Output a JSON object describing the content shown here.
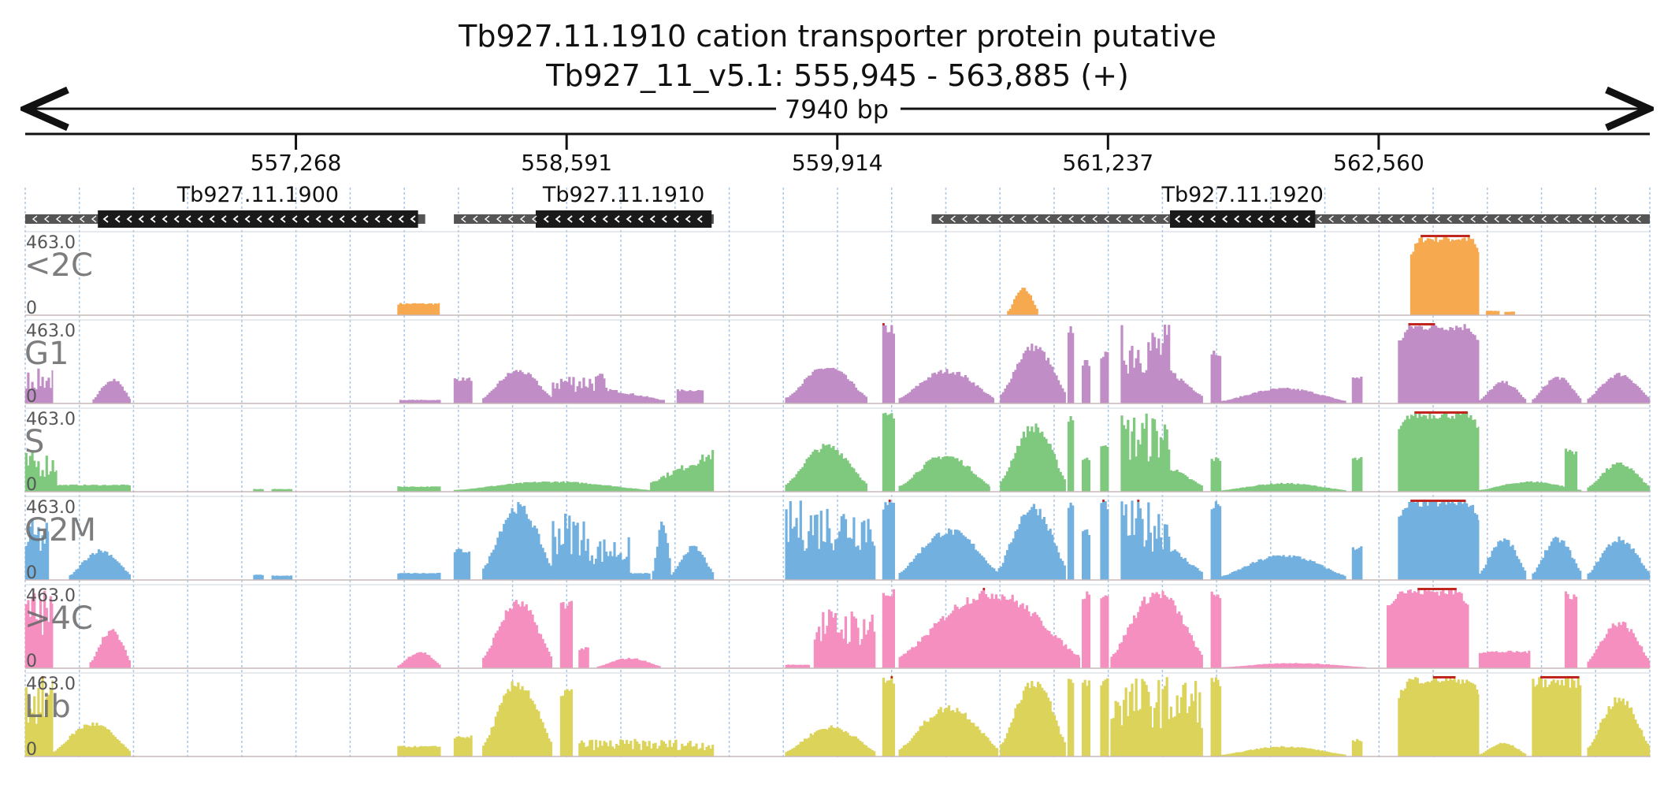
{
  "title": {
    "line1": "Tb927.11.1910  cation transporter protein  putative",
    "line2": "Tb927_11_v5.1: 555,945 - 563,885 (+)"
  },
  "span_label": "7940 bp",
  "colors": {
    "<2C": "#f7a94f",
    "G1": "#c08dc6",
    "S": "#7fc97f",
    "G2M": "#72b0e0",
    ">4C": "#f48fbf",
    "Lib": "#dcd35a",
    "clip": "#c0261f",
    "gene_thick": "#1a1a1a",
    "gene_thin": "#555555"
  },
  "chart_data": {
    "type": "area",
    "region": {
      "chrom": "Tb927_11_v5.1",
      "start": 555945,
      "end": 563885,
      "strand": "+"
    },
    "ruler_ticks": [
      "557,268",
      "558,591",
      "559,914",
      "561,237",
      "562,560"
    ],
    "ruler_tick_positions": [
      557268,
      558591,
      559914,
      561237,
      562560
    ],
    "genes": [
      {
        "name": "Tb927.11.1900",
        "start": 555945,
        "end": 557900,
        "cds_start": 556300,
        "cds_end": 557865
      },
      {
        "name": "Tb927.11.1910",
        "start": 558040,
        "end": 559310,
        "cds_start": 558440,
        "cds_end": 559300
      },
      {
        "name": "Tb927.11.1920",
        "start": 560375,
        "end": 563885,
        "cds_start": 561540,
        "cds_end": 562250
      }
    ],
    "ylim": [
      0,
      463.0
    ],
    "ymax_label": "463.0",
    "ymin_label": "0",
    "tracks": [
      {
        "name": "<2C",
        "color": "#f7a94f",
        "segments": [
          {
            "start": 557765,
            "end": 557970,
            "peak": 70,
            "shape": "flat"
          },
          {
            "start": 560745,
            "end": 560895,
            "peak": 160,
            "shape": "bump"
          },
          {
            "start": 562715,
            "end": 563050,
            "peak": 463,
            "shape": "plateau"
          },
          {
            "start": 563085,
            "end": 563150,
            "peak": 25,
            "shape": "flat"
          },
          {
            "start": 563175,
            "end": 563225,
            "peak": 20,
            "shape": "flat"
          }
        ]
      },
      {
        "name": "G1",
        "color": "#c08dc6",
        "segments": [
          {
            "start": 555945,
            "end": 556080,
            "peak": 200,
            "shape": "jagged"
          },
          {
            "start": 556275,
            "end": 556460,
            "peak": 150,
            "shape": "bump"
          },
          {
            "start": 557775,
            "end": 557975,
            "peak": 20,
            "shape": "flat"
          },
          {
            "start": 558040,
            "end": 558130,
            "peak": 150,
            "shape": "flat"
          },
          {
            "start": 558180,
            "end": 558520,
            "peak": 200,
            "shape": "bump"
          },
          {
            "start": 558520,
            "end": 558780,
            "peak": 180,
            "shape": "jagged"
          },
          {
            "start": 558780,
            "end": 559070,
            "peak": 90,
            "shape": "decay"
          },
          {
            "start": 559130,
            "end": 559260,
            "peak": 80,
            "shape": "flat"
          },
          {
            "start": 559660,
            "end": 560060,
            "peak": 220,
            "shape": "bump"
          },
          {
            "start": 560135,
            "end": 560195,
            "peak": 463,
            "shape": "flat"
          },
          {
            "start": 560215,
            "end": 560680,
            "peak": 200,
            "shape": "bump"
          },
          {
            "start": 560710,
            "end": 561030,
            "peak": 350,
            "shape": "bump"
          },
          {
            "start": 561040,
            "end": 561070,
            "peak": 463,
            "shape": "flat"
          },
          {
            "start": 561110,
            "end": 561150,
            "peak": 250,
            "shape": "flat"
          },
          {
            "start": 561200,
            "end": 561240,
            "peak": 300,
            "shape": "flat"
          },
          {
            "start": 561300,
            "end": 561540,
            "peak": 463,
            "shape": "jagged"
          },
          {
            "start": 561540,
            "end": 561700,
            "peak": 200,
            "shape": "decay"
          },
          {
            "start": 561740,
            "end": 561790,
            "peak": 320,
            "shape": "flat"
          },
          {
            "start": 561790,
            "end": 562400,
            "peak": 90,
            "shape": "bump"
          },
          {
            "start": 562430,
            "end": 562480,
            "peak": 160,
            "shape": "flat"
          },
          {
            "start": 562655,
            "end": 563050,
            "peak": 463,
            "shape": "plateau"
          },
          {
            "start": 563050,
            "end": 563280,
            "peak": 130,
            "shape": "bump"
          },
          {
            "start": 563310,
            "end": 563550,
            "peak": 160,
            "shape": "bump"
          },
          {
            "start": 563580,
            "end": 563885,
            "peak": 180,
            "shape": "bump"
          }
        ]
      },
      {
        "name": "S",
        "color": "#7fc97f",
        "segments": [
          {
            "start": 555945,
            "end": 556100,
            "peak": 230,
            "shape": "jagged"
          },
          {
            "start": 556100,
            "end": 556460,
            "peak": 40,
            "shape": "flat"
          },
          {
            "start": 557060,
            "end": 557110,
            "peak": 15,
            "shape": "flat"
          },
          {
            "start": 557150,
            "end": 557250,
            "peak": 15,
            "shape": "flat"
          },
          {
            "start": 557765,
            "end": 557975,
            "peak": 30,
            "shape": "flat"
          },
          {
            "start": 558040,
            "end": 559000,
            "peak": 60,
            "shape": "bump"
          },
          {
            "start": 559000,
            "end": 559310,
            "peak": 250,
            "shape": "rise"
          },
          {
            "start": 559660,
            "end": 560060,
            "peak": 280,
            "shape": "bump"
          },
          {
            "start": 560135,
            "end": 560195,
            "peak": 463,
            "shape": "flat"
          },
          {
            "start": 560215,
            "end": 560660,
            "peak": 220,
            "shape": "bump"
          },
          {
            "start": 560710,
            "end": 561030,
            "peak": 400,
            "shape": "bump"
          },
          {
            "start": 561040,
            "end": 561070,
            "peak": 463,
            "shape": "flat"
          },
          {
            "start": 561110,
            "end": 561150,
            "peak": 200,
            "shape": "flat"
          },
          {
            "start": 561200,
            "end": 561240,
            "peak": 300,
            "shape": "flat"
          },
          {
            "start": 561300,
            "end": 561540,
            "peak": 463,
            "shape": "jagged"
          },
          {
            "start": 561540,
            "end": 561700,
            "peak": 150,
            "shape": "decay"
          },
          {
            "start": 561740,
            "end": 561790,
            "peak": 200,
            "shape": "flat"
          },
          {
            "start": 561790,
            "end": 562400,
            "peak": 50,
            "shape": "bump"
          },
          {
            "start": 562430,
            "end": 562480,
            "peak": 200,
            "shape": "flat"
          },
          {
            "start": 562655,
            "end": 563050,
            "peak": 463,
            "shape": "plateau"
          },
          {
            "start": 563050,
            "end": 563550,
            "peak": 60,
            "shape": "bump"
          },
          {
            "start": 563470,
            "end": 563530,
            "peak": 250,
            "shape": "flat"
          },
          {
            "start": 563580,
            "end": 563885,
            "peak": 170,
            "shape": "bump"
          }
        ]
      },
      {
        "name": "G2M",
        "color": "#72b0e0",
        "segments": [
          {
            "start": 555945,
            "end": 556060,
            "peak": 350,
            "shape": "jagged"
          },
          {
            "start": 556160,
            "end": 556460,
            "peak": 180,
            "shape": "bump"
          },
          {
            "start": 557060,
            "end": 557110,
            "peak": 30,
            "shape": "flat"
          },
          {
            "start": 557150,
            "end": 557250,
            "peak": 25,
            "shape": "flat"
          },
          {
            "start": 557765,
            "end": 557975,
            "peak": 40,
            "shape": "flat"
          },
          {
            "start": 558040,
            "end": 558120,
            "peak": 180,
            "shape": "flat"
          },
          {
            "start": 558180,
            "end": 558520,
            "peak": 450,
            "shape": "bump"
          },
          {
            "start": 558520,
            "end": 558680,
            "peak": 400,
            "shape": "jagged"
          },
          {
            "start": 558680,
            "end": 558900,
            "peak": 250,
            "shape": "jagged"
          },
          {
            "start": 558900,
            "end": 559000,
            "peak": 40,
            "shape": "flat"
          },
          {
            "start": 559010,
            "end": 559100,
            "peak": 350,
            "shape": "bump"
          },
          {
            "start": 559100,
            "end": 559310,
            "peak": 200,
            "shape": "bump"
          },
          {
            "start": 559660,
            "end": 560100,
            "peak": 463,
            "shape": "jagged"
          },
          {
            "start": 560135,
            "end": 560195,
            "peak": 463,
            "shape": "flat"
          },
          {
            "start": 560215,
            "end": 560700,
            "peak": 300,
            "shape": "bump"
          },
          {
            "start": 560700,
            "end": 561030,
            "peak": 450,
            "shape": "bump"
          },
          {
            "start": 561040,
            "end": 561070,
            "peak": 463,
            "shape": "flat"
          },
          {
            "start": 561110,
            "end": 561150,
            "peak": 300,
            "shape": "flat"
          },
          {
            "start": 561200,
            "end": 561240,
            "peak": 463,
            "shape": "flat"
          },
          {
            "start": 561300,
            "end": 561540,
            "peak": 463,
            "shape": "jagged"
          },
          {
            "start": 561540,
            "end": 561700,
            "peak": 200,
            "shape": "decay"
          },
          {
            "start": 561740,
            "end": 561790,
            "peak": 463,
            "shape": "flat"
          },
          {
            "start": 561790,
            "end": 562400,
            "peak": 150,
            "shape": "bump"
          },
          {
            "start": 562430,
            "end": 562480,
            "peak": 200,
            "shape": "flat"
          },
          {
            "start": 562655,
            "end": 563050,
            "peak": 463,
            "shape": "plateau"
          },
          {
            "start": 563050,
            "end": 563280,
            "peak": 250,
            "shape": "bump"
          },
          {
            "start": 563310,
            "end": 563550,
            "peak": 250,
            "shape": "bump"
          },
          {
            "start": 563580,
            "end": 563885,
            "peak": 250,
            "shape": "bump"
          }
        ]
      },
      {
        "name": ">4C",
        "color": "#f48fbf",
        "segments": [
          {
            "start": 555945,
            "end": 556080,
            "peak": 463,
            "shape": "jagged"
          },
          {
            "start": 556260,
            "end": 556460,
            "peak": 230,
            "shape": "bump"
          },
          {
            "start": 557765,
            "end": 557975,
            "peak": 100,
            "shape": "bump"
          },
          {
            "start": 558180,
            "end": 558520,
            "peak": 400,
            "shape": "bump"
          },
          {
            "start": 558560,
            "end": 558620,
            "peak": 400,
            "shape": "flat"
          },
          {
            "start": 558650,
            "end": 558700,
            "peak": 120,
            "shape": "flat"
          },
          {
            "start": 558740,
            "end": 559050,
            "peak": 60,
            "shape": "bump"
          },
          {
            "start": 559660,
            "end": 559780,
            "peak": 20,
            "shape": "flat"
          },
          {
            "start": 559800,
            "end": 560100,
            "peak": 350,
            "shape": "jagged"
          },
          {
            "start": 560135,
            "end": 560195,
            "peak": 463,
            "shape": "flat"
          },
          {
            "start": 560215,
            "end": 561100,
            "peak": 463,
            "shape": "bump"
          },
          {
            "start": 561110,
            "end": 561150,
            "peak": 463,
            "shape": "flat"
          },
          {
            "start": 561200,
            "end": 561240,
            "peak": 463,
            "shape": "flat"
          },
          {
            "start": 561250,
            "end": 561700,
            "peak": 463,
            "shape": "bump"
          },
          {
            "start": 561740,
            "end": 561790,
            "peak": 463,
            "shape": "flat"
          },
          {
            "start": 561790,
            "end": 562500,
            "peak": 30,
            "shape": "bump"
          },
          {
            "start": 562600,
            "end": 563000,
            "peak": 463,
            "shape": "plateau"
          },
          {
            "start": 563050,
            "end": 563300,
            "peak": 100,
            "shape": "flat"
          },
          {
            "start": 563470,
            "end": 563530,
            "peak": 463,
            "shape": "flat"
          },
          {
            "start": 563580,
            "end": 563885,
            "peak": 280,
            "shape": "bump"
          }
        ]
      },
      {
        "name": "Lib",
        "color": "#dcd35a",
        "segments": [
          {
            "start": 555945,
            "end": 556080,
            "peak": 463,
            "shape": "jagged"
          },
          {
            "start": 556080,
            "end": 556460,
            "peak": 200,
            "shape": "bump"
          },
          {
            "start": 557765,
            "end": 557975,
            "peak": 60,
            "shape": "flat"
          },
          {
            "start": 558040,
            "end": 558130,
            "peak": 120,
            "shape": "flat"
          },
          {
            "start": 558180,
            "end": 558520,
            "peak": 450,
            "shape": "bump"
          },
          {
            "start": 558560,
            "end": 558620,
            "peak": 400,
            "shape": "flat"
          },
          {
            "start": 558650,
            "end": 559310,
            "peak": 100,
            "shape": "jagged"
          },
          {
            "start": 559660,
            "end": 560100,
            "peak": 180,
            "shape": "bump"
          },
          {
            "start": 560135,
            "end": 560195,
            "peak": 463,
            "shape": "flat"
          },
          {
            "start": 560215,
            "end": 560700,
            "peak": 300,
            "shape": "bump"
          },
          {
            "start": 560710,
            "end": 561030,
            "peak": 463,
            "shape": "bump"
          },
          {
            "start": 561040,
            "end": 561070,
            "peak": 463,
            "shape": "flat"
          },
          {
            "start": 561110,
            "end": 561150,
            "peak": 463,
            "shape": "flat"
          },
          {
            "start": 561200,
            "end": 561240,
            "peak": 463,
            "shape": "flat"
          },
          {
            "start": 561250,
            "end": 561700,
            "peak": 463,
            "shape": "jagged"
          },
          {
            "start": 561740,
            "end": 561790,
            "peak": 463,
            "shape": "flat"
          },
          {
            "start": 561790,
            "end": 562400,
            "peak": 60,
            "shape": "bump"
          },
          {
            "start": 562430,
            "end": 562480,
            "peak": 100,
            "shape": "flat"
          },
          {
            "start": 562655,
            "end": 563050,
            "peak": 463,
            "shape": "plateau"
          },
          {
            "start": 563050,
            "end": 563280,
            "peak": 80,
            "shape": "bump"
          },
          {
            "start": 563310,
            "end": 563550,
            "peak": 463,
            "shape": "flat"
          },
          {
            "start": 563580,
            "end": 563885,
            "peak": 350,
            "shape": "bump"
          }
        ]
      }
    ]
  }
}
